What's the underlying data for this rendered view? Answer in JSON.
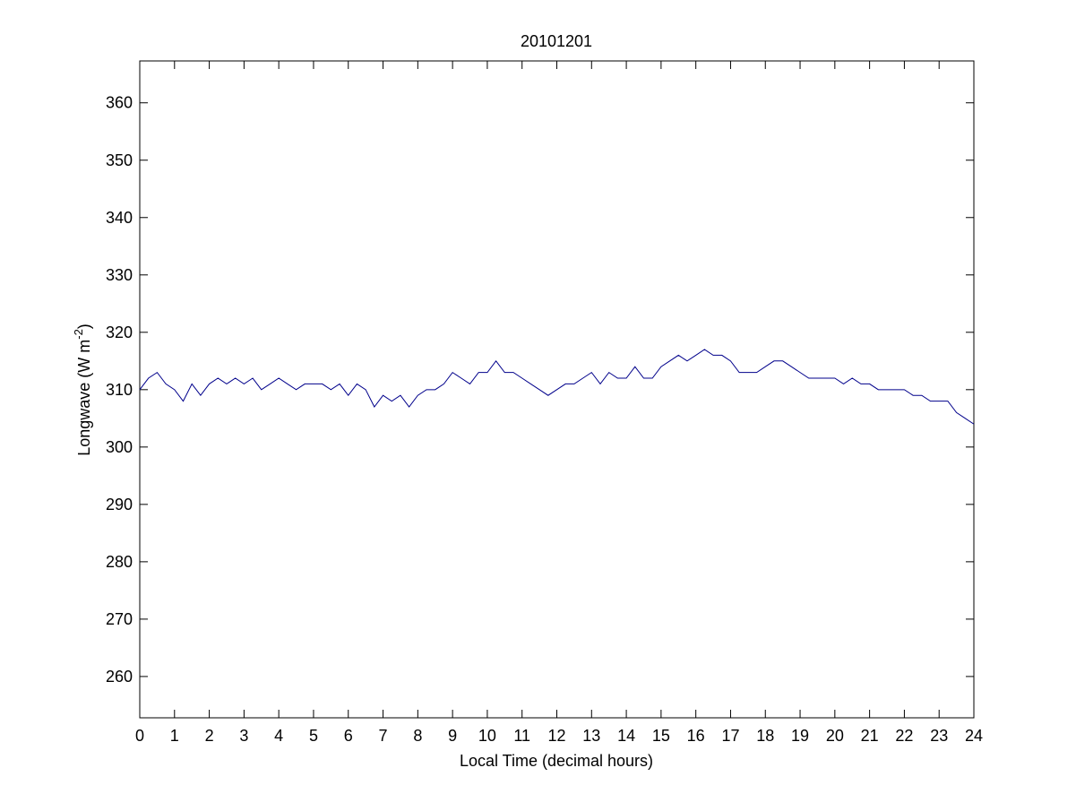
{
  "chart_data": {
    "type": "line",
    "title": "20101201",
    "xlabel": "Local Time (decimal hours)",
    "ylabel_parts": [
      "Longwave (W m",
      "-2",
      ")"
    ],
    "x": [
      0,
      0.25,
      0.5,
      0.75,
      1,
      1.25,
      1.5,
      1.75,
      2,
      2.25,
      2.5,
      2.75,
      3,
      3.25,
      3.5,
      3.75,
      4,
      4.25,
      4.5,
      4.75,
      5,
      5.25,
      5.5,
      5.75,
      6,
      6.25,
      6.5,
      6.75,
      7,
      7.25,
      7.5,
      7.75,
      8,
      8.25,
      8.5,
      8.75,
      9,
      9.25,
      9.5,
      9.75,
      10,
      10.25,
      10.5,
      10.75,
      11,
      11.25,
      11.5,
      11.75,
      12,
      12.25,
      12.5,
      12.75,
      13,
      13.25,
      13.5,
      13.75,
      14,
      14.25,
      14.5,
      14.75,
      15,
      15.25,
      15.5,
      15.75,
      16,
      16.25,
      16.5,
      16.75,
      17,
      17.25,
      17.5,
      17.75,
      18,
      18.25,
      18.5,
      18.75,
      19,
      19.25,
      19.5,
      19.75,
      20,
      20.25,
      20.5,
      20.75,
      21,
      21.25,
      21.5,
      21.75,
      22,
      22.25,
      22.5,
      22.75,
      23,
      23.25,
      23.5,
      23.75,
      24
    ],
    "series": [
      {
        "color": "#00008b",
        "values": [
          310,
          312,
          313,
          311,
          310,
          308,
          311,
          309,
          311,
          312,
          311,
          312,
          311,
          312,
          310,
          311,
          312,
          311,
          310,
          311,
          311,
          311,
          310,
          311,
          309,
          311,
          310,
          307,
          309,
          308,
          309,
          307,
          309,
          310,
          310,
          311,
          313,
          312,
          311,
          313,
          313,
          315,
          313,
          313,
          312,
          311,
          310,
          309,
          310,
          311,
          311,
          312,
          313,
          311,
          313,
          312,
          312,
          314,
          312,
          312,
          314,
          315,
          316,
          315,
          316,
          317,
          316,
          316,
          315,
          313,
          313,
          313,
          314,
          315,
          315,
          314,
          313,
          312,
          312,
          312,
          312,
          311,
          312,
          311,
          311,
          310,
          310,
          310,
          310,
          309,
          309,
          308,
          308,
          308,
          306,
          305,
          304
        ]
      }
    ],
    "xlim": [
      0,
      24
    ],
    "xticks": [
      0,
      1,
      2,
      3,
      4,
      5,
      6,
      7,
      8,
      9,
      10,
      11,
      12,
      13,
      14,
      15,
      16,
      17,
      18,
      19,
      20,
      21,
      22,
      23,
      24
    ],
    "ylim": [
      252.8,
      367.3
    ],
    "yticks": [
      260,
      270,
      280,
      290,
      300,
      310,
      320,
      330,
      340,
      350,
      360
    ]
  }
}
